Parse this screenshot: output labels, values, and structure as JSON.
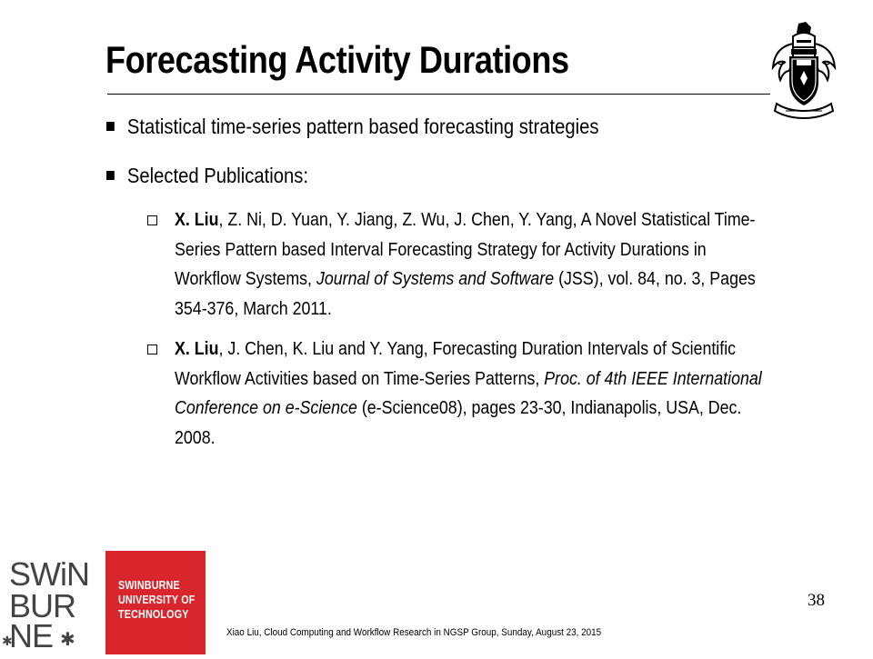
{
  "slide": {
    "title": "Forecasting Activity Durations",
    "bullets": [
      "Statistical time-series pattern based forecasting strategies",
      "Selected Publications:"
    ],
    "publications": [
      {
        "author_bold": "X. Liu",
        "authors_rest": ", Z. Ni, D. Yuan, Y. Jiang, Z. Wu, J. Chen, Y. Yang, A Novel Statistical Time-Series Pattern based Interval Forecasting Strategy for Activity Durations in Workflow Systems, ",
        "venue_italic": "Journal of Systems and Software",
        "details": " (JSS), vol. 84, no. 3, Pages 354-376, March 2011."
      },
      {
        "author_bold": "X. Liu",
        "authors_rest": ", J. Chen, K. Liu and Y. Yang, Forecasting Duration Intervals of Scientific Workflow Activities based on Time-Series Patterns, ",
        "venue_italic": "Proc. of 4th IEEE International Conference on e-Science",
        "details": " (e-Science08), pages 23-30, Indianapolis, USA, Dec. 2008."
      }
    ],
    "page_number": "38",
    "footer": "Xiao Liu, Cloud Computing and Workflow Research in NGSP Group, Sunday, August 23, 2015"
  },
  "logo": {
    "wordmark_lines": [
      "SWiN",
      "BUR",
      "NE"
    ],
    "institution_lines": [
      "SWINBURNE",
      "UNIVERSITY OF",
      "TECHNOLOGY"
    ],
    "brand_color": "#d8262c"
  },
  "icons": {
    "crest": "university-coat-of-arms-icon",
    "bullet": "filled-square-bullet-icon",
    "sub_bullet": "hollow-square-bullet-icon"
  }
}
